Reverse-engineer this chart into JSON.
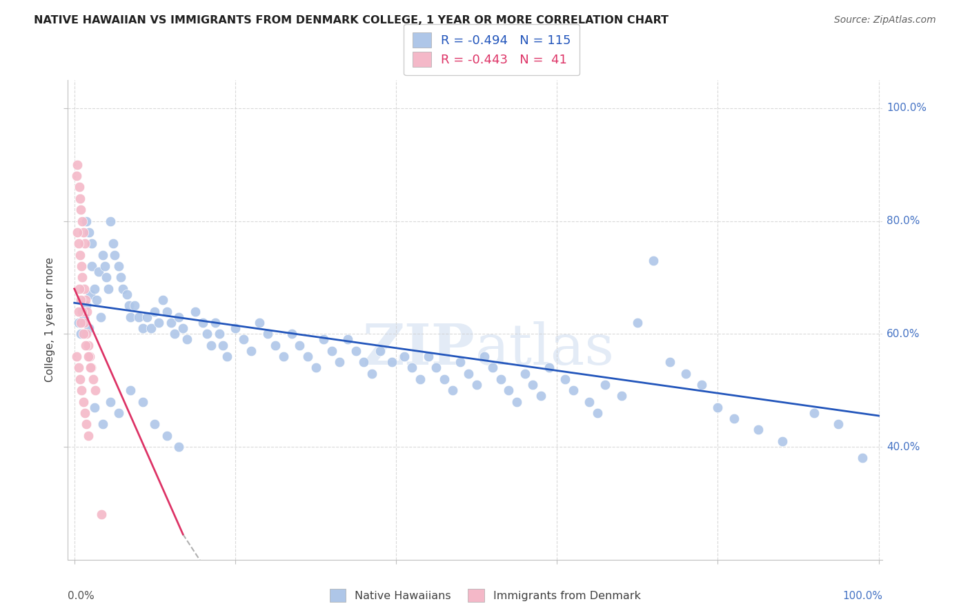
{
  "title": "NATIVE HAWAIIAN VS IMMIGRANTS FROM DENMARK COLLEGE, 1 YEAR OR MORE CORRELATION CHART",
  "source": "Source: ZipAtlas.com",
  "ylabel": "College, 1 year or more",
  "legend_label1": "Native Hawaiians",
  "legend_label2": "Immigrants from Denmark",
  "r1": -0.494,
  "n1": 115,
  "r2": -0.443,
  "n2": 41,
  "color_blue": "#aec6e8",
  "color_pink": "#f4b8c8",
  "line_blue": "#2255bb",
  "line_pink": "#dd3366",
  "watermark": "ZIPatlas",
  "blue_x": [
    0.005,
    0.008,
    0.01,
    0.012,
    0.015,
    0.018,
    0.02,
    0.022,
    0.025,
    0.028,
    0.03,
    0.033,
    0.015,
    0.018,
    0.022,
    0.035,
    0.038,
    0.04,
    0.042,
    0.045,
    0.048,
    0.05,
    0.055,
    0.058,
    0.06,
    0.065,
    0.068,
    0.07,
    0.075,
    0.08,
    0.085,
    0.09,
    0.095,
    0.1,
    0.105,
    0.11,
    0.115,
    0.12,
    0.125,
    0.13,
    0.135,
    0.14,
    0.15,
    0.16,
    0.165,
    0.17,
    0.175,
    0.18,
    0.185,
    0.19,
    0.2,
    0.21,
    0.22,
    0.23,
    0.24,
    0.25,
    0.26,
    0.27,
    0.28,
    0.29,
    0.3,
    0.31,
    0.32,
    0.33,
    0.34,
    0.35,
    0.36,
    0.37,
    0.38,
    0.395,
    0.41,
    0.42,
    0.43,
    0.44,
    0.45,
    0.46,
    0.47,
    0.48,
    0.49,
    0.5,
    0.51,
    0.52,
    0.53,
    0.54,
    0.55,
    0.56,
    0.57,
    0.58,
    0.59,
    0.61,
    0.62,
    0.64,
    0.65,
    0.66,
    0.68,
    0.7,
    0.72,
    0.74,
    0.76,
    0.78,
    0.8,
    0.82,
    0.85,
    0.88,
    0.92,
    0.95,
    0.98,
    0.025,
    0.035,
    0.045,
    0.055,
    0.07,
    0.085,
    0.1,
    0.115,
    0.13
  ],
  "blue_y": [
    0.62,
    0.6,
    0.64,
    0.63,
    0.65,
    0.61,
    0.67,
    0.72,
    0.68,
    0.66,
    0.71,
    0.63,
    0.8,
    0.78,
    0.76,
    0.74,
    0.72,
    0.7,
    0.68,
    0.8,
    0.76,
    0.74,
    0.72,
    0.7,
    0.68,
    0.67,
    0.65,
    0.63,
    0.65,
    0.63,
    0.61,
    0.63,
    0.61,
    0.64,
    0.62,
    0.66,
    0.64,
    0.62,
    0.6,
    0.63,
    0.61,
    0.59,
    0.64,
    0.62,
    0.6,
    0.58,
    0.62,
    0.6,
    0.58,
    0.56,
    0.61,
    0.59,
    0.57,
    0.62,
    0.6,
    0.58,
    0.56,
    0.6,
    0.58,
    0.56,
    0.54,
    0.59,
    0.57,
    0.55,
    0.59,
    0.57,
    0.55,
    0.53,
    0.57,
    0.55,
    0.56,
    0.54,
    0.52,
    0.56,
    0.54,
    0.52,
    0.5,
    0.55,
    0.53,
    0.51,
    0.56,
    0.54,
    0.52,
    0.5,
    0.48,
    0.53,
    0.51,
    0.49,
    0.54,
    0.52,
    0.5,
    0.48,
    0.46,
    0.51,
    0.49,
    0.62,
    0.73,
    0.55,
    0.53,
    0.51,
    0.47,
    0.45,
    0.43,
    0.41,
    0.46,
    0.44,
    0.38,
    0.47,
    0.44,
    0.48,
    0.46,
    0.5,
    0.48,
    0.44,
    0.42,
    0.4
  ],
  "pink_x": [
    0.003,
    0.004,
    0.006,
    0.007,
    0.008,
    0.01,
    0.011,
    0.013,
    0.004,
    0.005,
    0.007,
    0.009,
    0.01,
    0.012,
    0.014,
    0.016,
    0.006,
    0.008,
    0.01,
    0.012,
    0.015,
    0.017,
    0.019,
    0.021,
    0.005,
    0.008,
    0.011,
    0.014,
    0.017,
    0.02,
    0.023,
    0.026,
    0.003,
    0.005,
    0.007,
    0.009,
    0.011,
    0.013,
    0.015,
    0.017,
    0.034
  ],
  "pink_y": [
    0.88,
    0.9,
    0.86,
    0.84,
    0.82,
    0.8,
    0.78,
    0.76,
    0.78,
    0.76,
    0.74,
    0.72,
    0.7,
    0.68,
    0.66,
    0.64,
    0.68,
    0.66,
    0.64,
    0.62,
    0.6,
    0.58,
    0.56,
    0.54,
    0.64,
    0.62,
    0.6,
    0.58,
    0.56,
    0.54,
    0.52,
    0.5,
    0.56,
    0.54,
    0.52,
    0.5,
    0.48,
    0.46,
    0.44,
    0.42,
    0.28
  ],
  "blue_line": [
    [
      0.0,
      1.0
    ],
    [
      0.655,
      0.455
    ]
  ],
  "pink_line_solid": [
    [
      0.0,
      0.135
    ],
    [
      0.68,
      0.245
    ]
  ],
  "pink_line_dash": [
    [
      0.135,
      0.22
    ],
    [
      0.245,
      0.06
    ]
  ]
}
